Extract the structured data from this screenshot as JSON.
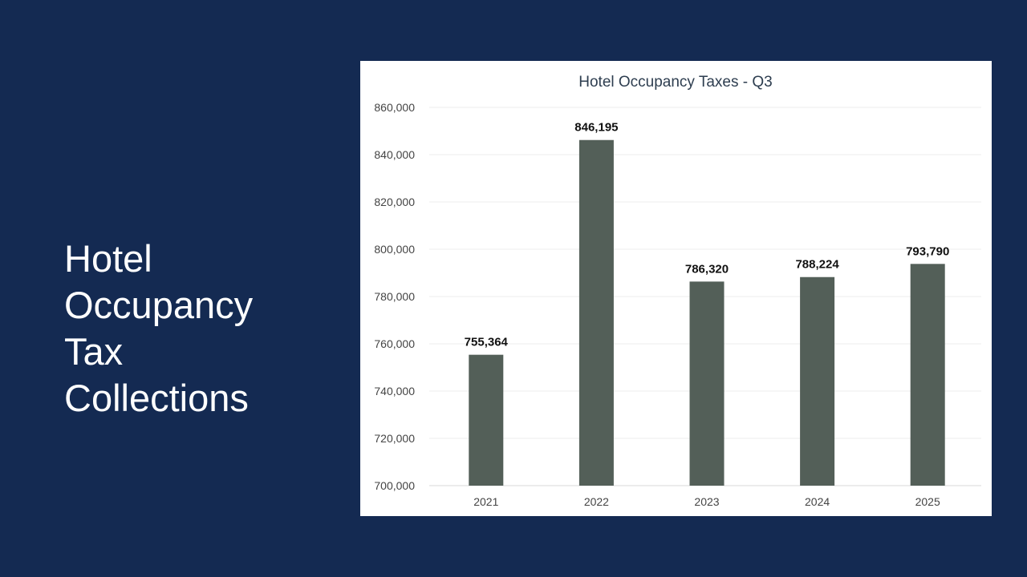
{
  "slide": {
    "title_lines": [
      "Hotel",
      "Occupancy",
      "Tax",
      "Collections"
    ]
  },
  "colors": {
    "background": "#142a52",
    "panel": "#ffffff",
    "bar": "#535f58",
    "gridline": "#eeeeee",
    "title_text": "#2d3d4f",
    "tick_text": "#444444",
    "data_label": "#111111"
  },
  "chart_data": {
    "type": "bar",
    "title": "Hotel Occupancy Taxes - Q3",
    "xlabel": "",
    "ylabel": "",
    "categories": [
      "2021",
      "2022",
      "2023",
      "2024",
      "2025"
    ],
    "values": [
      755364,
      846195,
      786320,
      788224,
      793790
    ],
    "data_labels": [
      "755,364",
      "846,195",
      "786,320",
      "788,224",
      "793,790"
    ],
    "ylim": [
      700000,
      860000
    ],
    "yticks": [
      700000,
      720000,
      740000,
      760000,
      780000,
      800000,
      820000,
      840000,
      860000
    ],
    "ytick_labels": [
      "700,000",
      "720,000",
      "740,000",
      "760,000",
      "780,000",
      "800,000",
      "820,000",
      "840,000",
      "860,000"
    ],
    "grid": true,
    "legend": "none"
  }
}
